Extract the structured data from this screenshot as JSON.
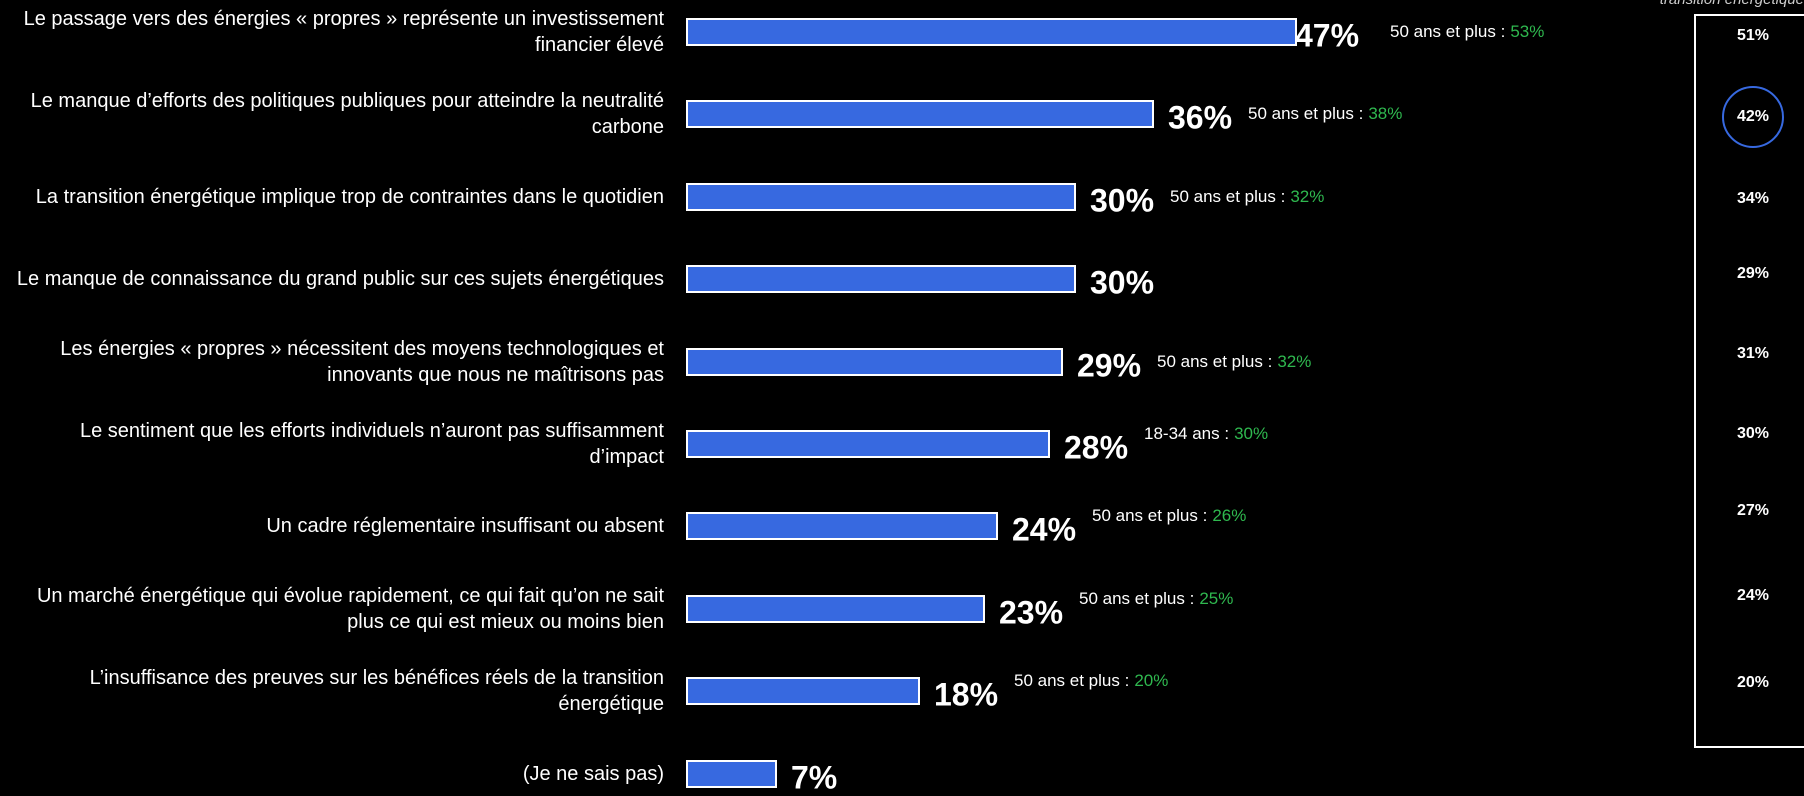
{
  "chart_data": {
    "type": "bar",
    "orientation": "horizontal",
    "color": "#3769e0",
    "categories": [
      "Le passage vers des énergies « propres » représente un investissement financier élevé",
      "Le manque d’efforts des politiques publiques pour atteindre la neutralité carbone",
      "La transition énergétique implique trop de contraintes dans le quotidien",
      "Le manque de connaissance du grand public sur ces sujets énergétiques",
      "Les énergies « propres » nécessitent des moyens technologiques et innovants que nous ne maîtrisons pas",
      "Le sentiment que les efforts individuels n’auront pas suffisamment d’impact",
      "Un cadre réglementaire insuffisant ou absent",
      "Un marché énergétique qui évolue rapidement, ce qui fait qu’on ne sait plus ce qui est mieux ou moins bien",
      "L’insuffisance des preuves sur les bénéfices réels de la transition énergétique",
      "(Je ne sais pas)"
    ],
    "values": [
      47,
      36,
      30,
      30,
      29,
      28,
      24,
      23,
      18,
      7
    ],
    "value_labels": [
      "47%",
      "36%",
      "30%",
      "30%",
      "29%",
      "28%",
      "24%",
      "23%",
      "18%",
      "7%"
    ],
    "notes": [
      {
        "label": "50 ans et plus :",
        "value": "53%"
      },
      {
        "label": "50 ans et plus :",
        "value": "38%"
      },
      {
        "label": "50 ans et plus :",
        "value": "32%"
      },
      null,
      {
        "label": "50 ans et plus :",
        "value": "32%"
      },
      {
        "label": "18-34 ans :",
        "value": "30%"
      },
      {
        "label": "50 ans et plus :",
        "value": "26%"
      },
      {
        "label": "50 ans et plus :",
        "value": "25%"
      },
      {
        "label": "50 ans et plus :",
        "value": "20%"
      },
      null
    ],
    "note_color": "#2fb84f",
    "side_column": {
      "header": "transition énergétique",
      "values": [
        "51%",
        "42%",
        "34%",
        "29%",
        "31%",
        "30%",
        "27%",
        "24%",
        "20%"
      ],
      "highlight": 1
    }
  }
}
